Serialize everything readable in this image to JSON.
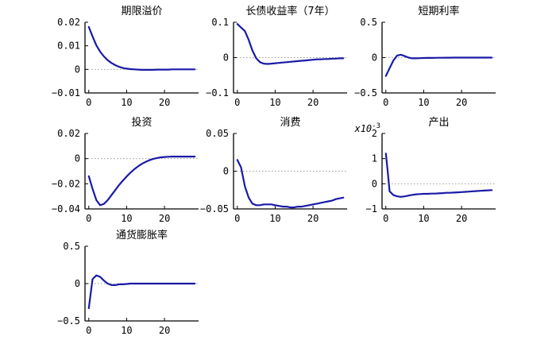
{
  "colors": {
    "line": "#1a1aa6",
    "axis": "#000000",
    "zero": "#9a9a9a"
  },
  "chart_data": [
    {
      "type": "line",
      "title": "期限溢价",
      "xlim": [
        -1,
        29
      ],
      "ylim": [
        -0.01,
        0.02
      ],
      "xticks": [
        0,
        10,
        20
      ],
      "xtick_labels": [
        "0",
        "10",
        "20"
      ],
      "yticks": [
        0.02,
        0.01,
        0,
        -0.01
      ],
      "ytick_labels": [
        "0.02",
        "0.01",
        "0",
        "−0.01"
      ],
      "exponent_label": "",
      "series": [
        {
          "x": [
            0,
            1,
            2,
            3,
            4,
            5,
            6,
            7,
            8,
            9,
            10,
            11,
            12,
            13,
            14,
            15,
            16,
            17,
            18,
            19,
            20,
            21,
            22,
            23,
            24,
            25,
            26,
            27,
            28
          ],
          "values": [
            0.018,
            0.014,
            0.0102,
            0.0075,
            0.0055,
            0.0039,
            0.0027,
            0.0018,
            0.0011,
            0.0006,
            0.0003,
            0.0001,
            0.0,
            -0.0001,
            -0.0002,
            -0.0002,
            -0.0002,
            -0.0002,
            -0.0001,
            -0.0001,
            -0.0001,
            -0.0001,
            0.0,
            0.0,
            0.0,
            0.0,
            0.0,
            0.0,
            0.0
          ]
        }
      ]
    },
    {
      "type": "line",
      "title": "长债收益率（7年）",
      "xlim": [
        -1,
        29
      ],
      "ylim": [
        -0.1,
        0.1
      ],
      "xticks": [
        0,
        10,
        20
      ],
      "xtick_labels": [
        "0",
        "10",
        "20"
      ],
      "yticks": [
        0.1,
        0,
        -0.1
      ],
      "ytick_labels": [
        "0.1",
        "0",
        "−0.1"
      ],
      "exponent_label": "",
      "series": [
        {
          "x": [
            0,
            1,
            2,
            3,
            4,
            5,
            6,
            7,
            8,
            9,
            10,
            11,
            12,
            13,
            14,
            15,
            16,
            17,
            18,
            19,
            20,
            21,
            22,
            23,
            24,
            25,
            26,
            27,
            28
          ],
          "values": [
            0.095,
            0.085,
            0.075,
            0.05,
            0.02,
            -0.002,
            -0.013,
            -0.017,
            -0.018,
            -0.017,
            -0.016,
            -0.015,
            -0.014,
            -0.013,
            -0.012,
            -0.011,
            -0.01,
            -0.009,
            -0.008,
            -0.007,
            -0.006,
            -0.005,
            -0.005,
            -0.004,
            -0.004,
            -0.003,
            -0.003,
            -0.002,
            -0.002
          ]
        }
      ]
    },
    {
      "type": "line",
      "title": "短期利率",
      "xlim": [
        -1,
        29
      ],
      "ylim": [
        -0.5,
        0.5
      ],
      "xticks": [
        0,
        10,
        20
      ],
      "xtick_labels": [
        "0",
        "10",
        "20"
      ],
      "yticks": [
        0.5,
        0,
        -0.5
      ],
      "ytick_labels": [
        "0.5",
        "0",
        "−0.5"
      ],
      "exponent_label": "",
      "series": [
        {
          "x": [
            0,
            1,
            2,
            3,
            4,
            5,
            6,
            7,
            8,
            9,
            10,
            11,
            12,
            13,
            14,
            15,
            16,
            17,
            18,
            19,
            20,
            21,
            22,
            23,
            24,
            25,
            26,
            27,
            28
          ],
          "values": [
            -0.26,
            -0.15,
            -0.04,
            0.03,
            0.04,
            0.02,
            0.0,
            -0.01,
            -0.01,
            -0.008,
            -0.006,
            -0.005,
            -0.004,
            -0.003,
            -0.002,
            -0.002,
            -0.001,
            -0.001,
            0.0,
            0.0,
            0.0,
            0.0,
            0.0,
            0.0,
            0.0,
            0.0,
            0.0,
            0.0,
            0.0
          ]
        }
      ]
    },
    {
      "type": "line",
      "title": "投资",
      "xlim": [
        -1,
        29
      ],
      "ylim": [
        -0.04,
        0.02
      ],
      "xticks": [
        0,
        10,
        20
      ],
      "xtick_labels": [
        "0",
        "10",
        "20"
      ],
      "yticks": [
        0.02,
        0,
        -0.02,
        -0.04
      ],
      "ytick_labels": [
        "0.02",
        "0",
        "−0.02",
        "−0.04"
      ],
      "exponent_label": "",
      "series": [
        {
          "x": [
            0,
            1,
            2,
            3,
            4,
            5,
            6,
            7,
            8,
            9,
            10,
            11,
            12,
            13,
            14,
            15,
            16,
            17,
            18,
            19,
            20,
            21,
            22,
            23,
            24,
            25,
            26,
            27,
            28
          ],
          "values": [
            -0.014,
            -0.024,
            -0.033,
            -0.037,
            -0.036,
            -0.033,
            -0.029,
            -0.025,
            -0.021,
            -0.0175,
            -0.0142,
            -0.0112,
            -0.0085,
            -0.0062,
            -0.0042,
            -0.0026,
            -0.0013,
            -0.0003,
            0.0005,
            0.001,
            0.0013,
            0.0015,
            0.0016,
            0.0016,
            0.0016,
            0.0016,
            0.0016,
            0.0016,
            0.0016
          ]
        }
      ]
    },
    {
      "type": "line",
      "title": "消费",
      "xlim": [
        -1,
        29
      ],
      "ylim": [
        -0.05,
        0.05
      ],
      "xticks": [
        0,
        10,
        20
      ],
      "xtick_labels": [
        "0",
        "10",
        "20"
      ],
      "yticks": [
        0.05,
        0,
        -0.05
      ],
      "ytick_labels": [
        "0.05",
        "0",
        "−0.05"
      ],
      "exponent_label": "",
      "series": [
        {
          "x": [
            0,
            1,
            2,
            3,
            4,
            5,
            6,
            7,
            8,
            9,
            10,
            11,
            12,
            13,
            14,
            15,
            16,
            17,
            18,
            19,
            20,
            21,
            22,
            23,
            24,
            25,
            26,
            27,
            28
          ],
          "values": [
            0.015,
            0.005,
            -0.02,
            -0.035,
            -0.043,
            -0.045,
            -0.045,
            -0.044,
            -0.044,
            -0.044,
            -0.045,
            -0.046,
            -0.047,
            -0.047,
            -0.048,
            -0.048,
            -0.047,
            -0.047,
            -0.046,
            -0.045,
            -0.044,
            -0.043,
            -0.042,
            -0.041,
            -0.04,
            -0.039,
            -0.037,
            -0.036,
            -0.035
          ]
        }
      ]
    },
    {
      "type": "line",
      "title": "产出",
      "xlim": [
        -1,
        29
      ],
      "ylim": [
        -1,
        2
      ],
      "xticks": [
        0,
        10,
        20
      ],
      "xtick_labels": [
        "0",
        "10",
        "20"
      ],
      "yticks": [
        2,
        1,
        0,
        -1
      ],
      "ytick_labels": [
        "2",
        "1",
        "0",
        "−1"
      ],
      "exponent_label": "x10",
      "exponent_sup": "-3",
      "series": [
        {
          "x": [
            0,
            0.5,
            1,
            2,
            3,
            4,
            5,
            6,
            7,
            8,
            9,
            10,
            11,
            12,
            13,
            14,
            15,
            16,
            17,
            18,
            19,
            20,
            21,
            22,
            23,
            24,
            25,
            26,
            27,
            28
          ],
          "values": [
            1.2,
            0.5,
            -0.3,
            -0.45,
            -0.5,
            -0.52,
            -0.5,
            -0.47,
            -0.44,
            -0.42,
            -0.41,
            -0.4,
            -0.4,
            -0.39,
            -0.39,
            -0.38,
            -0.37,
            -0.36,
            -0.36,
            -0.35,
            -0.34,
            -0.33,
            -0.32,
            -0.31,
            -0.3,
            -0.29,
            -0.28,
            -0.27,
            -0.26,
            -0.25
          ]
        }
      ]
    },
    {
      "type": "line",
      "title": "通货膨胀率",
      "xlim": [
        -1,
        29
      ],
      "ylim": [
        -0.5,
        0.5
      ],
      "xticks": [
        0,
        10,
        20
      ],
      "xtick_labels": [
        "0",
        "10",
        "20"
      ],
      "yticks": [
        0.5,
        0,
        -0.5
      ],
      "ytick_labels": [
        "0.5",
        "0",
        "−0.5"
      ],
      "exponent_label": "",
      "series": [
        {
          "x": [
            0,
            1,
            2,
            3,
            4,
            5,
            6,
            7,
            8,
            9,
            10,
            11,
            12,
            13,
            14,
            15,
            16,
            17,
            18,
            19,
            20,
            21,
            22,
            23,
            24,
            25,
            26,
            27,
            28
          ],
          "values": [
            -0.33,
            0.06,
            0.11,
            0.09,
            0.04,
            0.0,
            -0.02,
            -0.02,
            -0.01,
            -0.01,
            -0.005,
            0.0,
            0.0,
            0.0,
            0.0,
            0.0,
            0.0,
            0.0,
            0.0,
            0.0,
            0.0,
            0.0,
            0.0,
            0.0,
            0.0,
            0.0,
            0.0,
            0.0,
            0.0
          ]
        }
      ]
    }
  ]
}
